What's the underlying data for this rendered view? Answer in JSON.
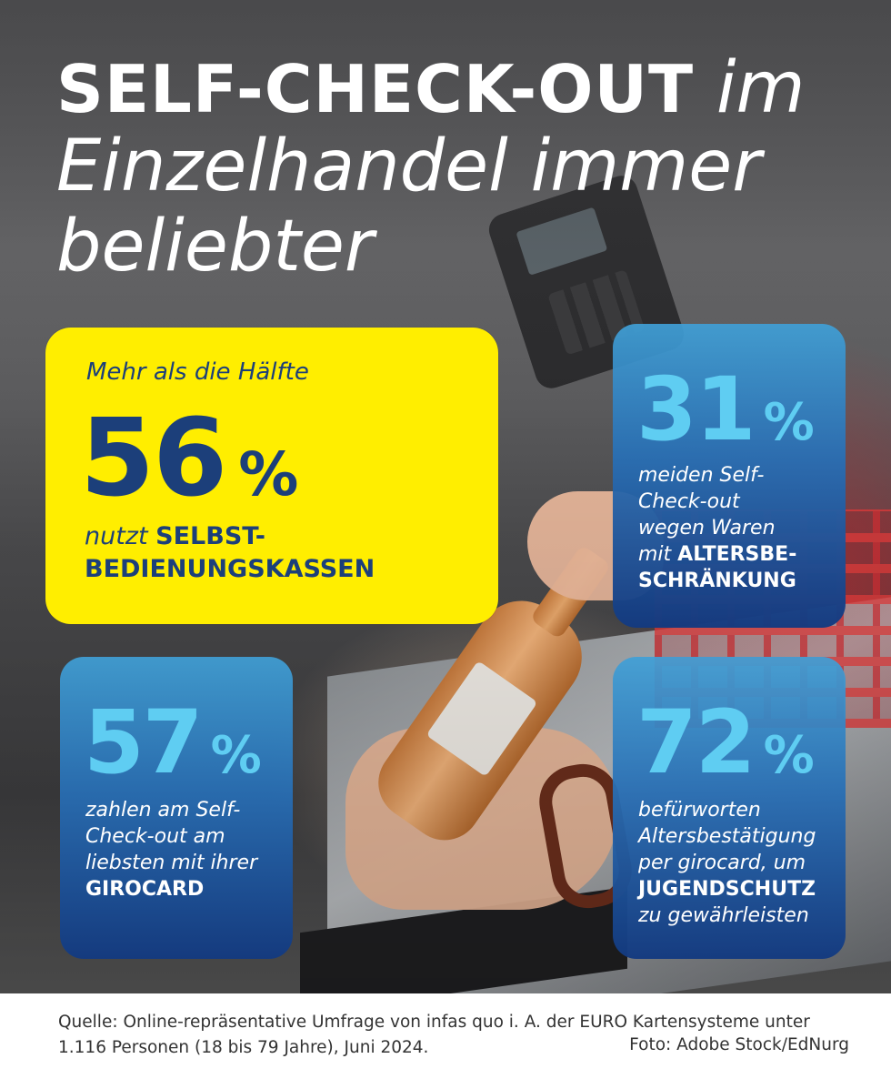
{
  "headline": {
    "strong": "SELF-CHECK-OUT",
    "part1": " im",
    "line2": "Einzelhandel immer",
    "line3": "beliebter"
  },
  "main_stat": {
    "intro": "Mehr als die Hälfte",
    "number": "56",
    "percent": "%",
    "text_em": "nutzt",
    "text_strong_1": "SELBST-",
    "text_strong_2": "BEDIENUNGSKASSEN"
  },
  "stat_31": {
    "number": "31",
    "percent": "%",
    "lines": [
      "meiden Self-",
      "Check-out",
      "wegen Waren"
    ],
    "last_em": "mit",
    "strong_1": "ALTERSBE-",
    "strong_2": "SCHRÄNKUNG"
  },
  "stat_57": {
    "number": "57",
    "percent": "%",
    "lines": [
      "zahlen am Self-",
      "Check-out am",
      "liebsten mit ihrer"
    ],
    "strong": "GIROCARD"
  },
  "stat_72": {
    "number": "72",
    "percent": "%",
    "lines": [
      "befürworten",
      "Altersbestätigung",
      "per girocard, um"
    ],
    "strong": "JUGENDSCHUTZ",
    "last": "zu gewährleisten"
  },
  "footer": {
    "source_line1": "Quelle: Online-repräsentative Umfrage von infas quo i. A. der EURO Kartensysteme unter",
    "source_line2": "1.116 Personen (18 bis 79 Jahre), Juni 2024.",
    "photo_credit": "Foto: Adobe Stock/EdNurg"
  },
  "colors": {
    "navy": "#1c3f7a",
    "yellow": "#ffee00",
    "light_blue": "#5fcdf2",
    "card_blue_top": "#40a0d7",
    "card_blue_bottom": "#133a80"
  }
}
